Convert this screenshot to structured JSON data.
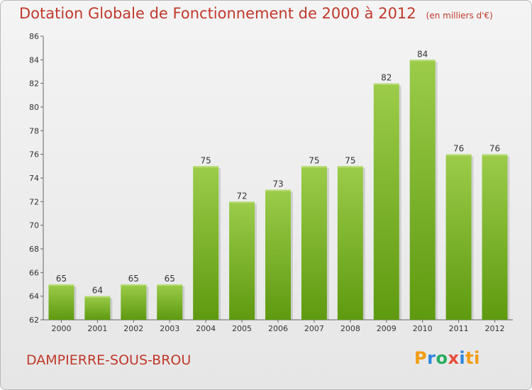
{
  "chart_data": {
    "type": "bar",
    "title": "Dotation Globale de Fonctionnement de 2000 à 2012",
    "subtitle": "(en milliers d'€)",
    "categories": [
      "2000",
      "2001",
      "2002",
      "2003",
      "2004",
      "2005",
      "2006",
      "2007",
      "2008",
      "2009",
      "2010",
      "2011",
      "2012"
    ],
    "values": [
      65,
      64,
      65,
      65,
      75,
      72,
      73,
      75,
      75,
      82,
      84,
      76,
      76
    ],
    "ylim": [
      62,
      86
    ],
    "yticks": [
      62,
      64,
      66,
      68,
      70,
      72,
      74,
      76,
      78,
      80,
      82,
      84,
      86
    ],
    "xlabel": "",
    "ylabel": "",
    "grid": false,
    "bar_color_top": "#9ccc4a",
    "bar_color_bottom": "#5e9a10"
  },
  "commune": "DAMPIERRE-SOUS-BROU",
  "logo_letters": [
    "P",
    "r",
    "o",
    "x",
    "i",
    "ti"
  ]
}
